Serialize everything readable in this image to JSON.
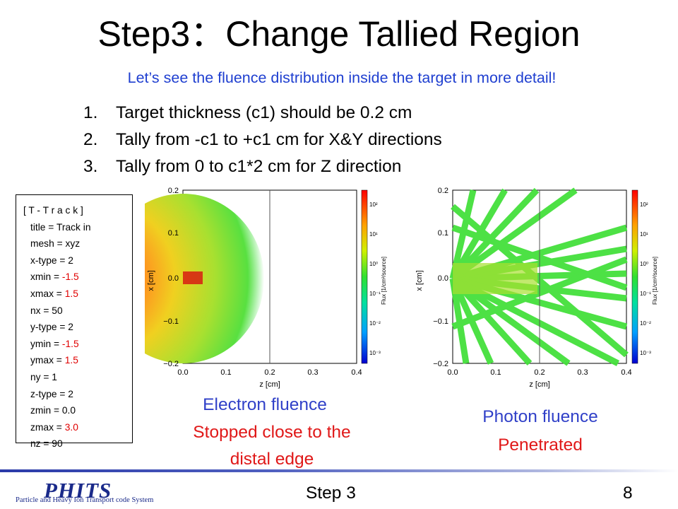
{
  "slide": {
    "title": "Step3：Change Tallied Region",
    "subtitle": "Let’s see the fluence distribution inside the target in more detail!",
    "steps": [
      {
        "num": "1.",
        "text": "Target thickness (c1) should be 0.2 cm"
      },
      {
        "num": "2.",
        "text": "Tally from -c1 to +c1 cm for X&Y directions"
      },
      {
        "num": "3.",
        "text": "Tally from 0 to c1*2 cm for Z direction"
      }
    ]
  },
  "input_box": {
    "header": "[ T - T r a c k ]",
    "lines": [
      {
        "key": "title = ",
        "value": "Track in",
        "highlight": false
      },
      {
        "key": "mesh = ",
        "value": "xyz",
        "highlight": false
      },
      {
        "key": "x-type = ",
        "value": "2",
        "highlight": false
      },
      {
        "key": "xmin = ",
        "value": "-1.5",
        "highlight": true
      },
      {
        "key": "xmax = ",
        "value": "1.5",
        "highlight": true
      },
      {
        "key": "nx = ",
        "value": "50",
        "highlight": false
      },
      {
        "key": "y-type = ",
        "value": "2",
        "highlight": false
      },
      {
        "key": "ymin = ",
        "value": "-1.5",
        "highlight": true
      },
      {
        "key": "ymax = ",
        "value": "1.5",
        "highlight": true
      },
      {
        "key": "ny = ",
        "value": "1",
        "highlight": false
      },
      {
        "key": "z-type = ",
        "value": "2",
        "highlight": false
      },
      {
        "key": "zmin = ",
        "value": "0.0",
        "highlight": false
      },
      {
        "key": "zmax = ",
        "value": "3.0",
        "highlight": true
      },
      {
        "key": "nz = ",
        "value": "90",
        "highlight": false
      }
    ],
    "highlight_color": "#e00000"
  },
  "plots": {
    "xlabel": "z [cm]",
    "ylabel": "x [cm]",
    "colorbar_label": "Flux [1/cm²/source]",
    "x_ticks": [
      "0.0",
      "0.1",
      "0.2",
      "0.3",
      "0.4"
    ],
    "y_ticks": [
      "0.2",
      "0.1",
      "0.0",
      "−0.1",
      "−0.2"
    ],
    "colorbar_ticks": [
      "10²",
      "10¹",
      "10⁰",
      "10⁻¹",
      "10⁻²",
      "10⁻³"
    ],
    "electron": {
      "caption": "Electron fluence",
      "note_line1": "Stopped close to the",
      "note_line2": "distal edge"
    },
    "photon": {
      "caption": "Photon fluence",
      "note": "Penetrated"
    }
  },
  "footer": {
    "logo": "PHITS",
    "logo_sub": "Particle and Heavy Ion Transport code System",
    "step_label": "Step 3",
    "page_number": "8"
  },
  "colors": {
    "title": "#000000",
    "subtitle": "#1f3fd0",
    "caption_blue": "#3040c8",
    "note_red": "#e01818",
    "logo": "#1a2a8a"
  }
}
